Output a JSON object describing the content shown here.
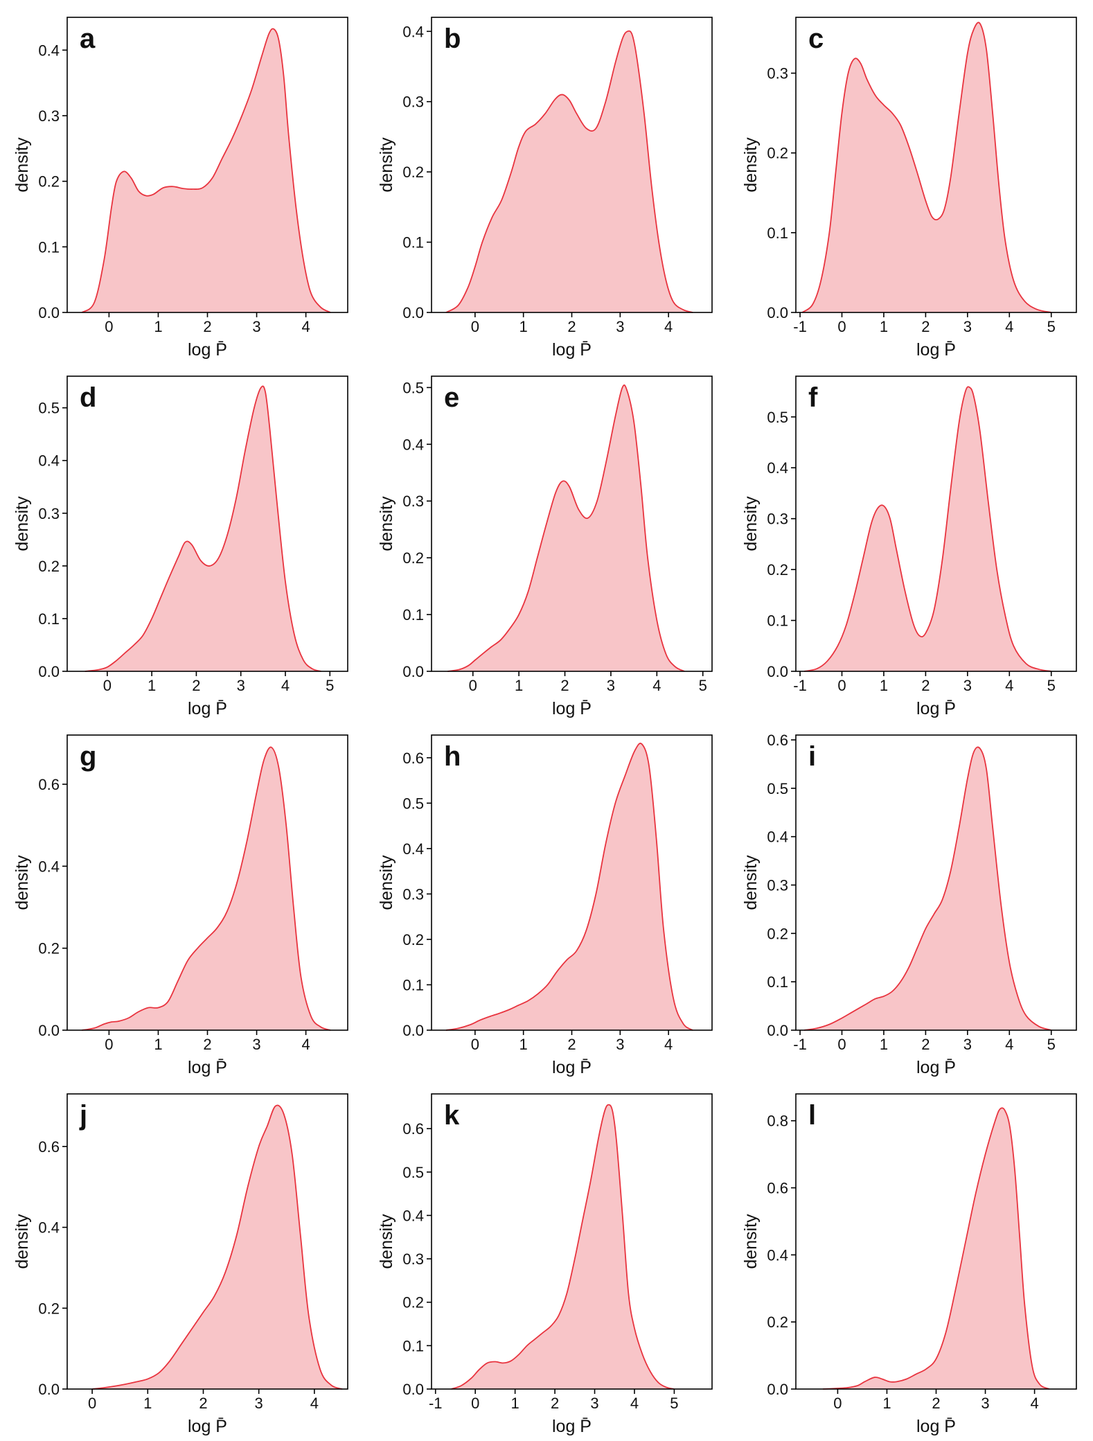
{
  "chart_data": [
    {
      "panel": "a",
      "type": "area",
      "xlabel": "log P̄",
      "ylabel": "density",
      "xlim": [
        -0.85,
        4.85
      ],
      "ylim": [
        0,
        0.45
      ],
      "xticks": [
        0,
        1,
        2,
        3,
        4
      ],
      "xtick_labels": [
        "0",
        "1",
        "2",
        "3",
        "4"
      ],
      "yticks": [
        0,
        0.1,
        0.2,
        0.3,
        0.4
      ],
      "ytick_labels": [
        "0.0",
        "0.1",
        "0.2",
        "0.3",
        "0.4"
      ],
      "x": [
        -0.55,
        -0.3,
        -0.1,
        0.05,
        0.15,
        0.3,
        0.45,
        0.6,
        0.75,
        0.9,
        1.1,
        1.3,
        1.5,
        1.7,
        1.9,
        2.1,
        2.3,
        2.5,
        2.7,
        2.9,
        3.1,
        3.25,
        3.35,
        3.45,
        3.55,
        3.65,
        3.8,
        3.95,
        4.1,
        4.3,
        4.5
      ],
      "y": [
        0.0,
        0.015,
        0.08,
        0.16,
        0.2,
        0.215,
        0.205,
        0.185,
        0.178,
        0.18,
        0.19,
        0.192,
        0.189,
        0.188,
        0.19,
        0.205,
        0.235,
        0.265,
        0.3,
        0.34,
        0.39,
        0.425,
        0.432,
        0.415,
        0.36,
        0.27,
        0.16,
        0.08,
        0.03,
        0.008,
        0.0
      ]
    },
    {
      "panel": "b",
      "type": "area",
      "xlabel": "log P̄",
      "ylabel": "density",
      "xlim": [
        -0.9,
        4.9
      ],
      "ylim": [
        0,
        0.42
      ],
      "xticks": [
        0,
        1,
        2,
        3,
        4
      ],
      "xtick_labels": [
        "0",
        "1",
        "2",
        "3",
        "4"
      ],
      "yticks": [
        0,
        0.1,
        0.2,
        0.3,
        0.4
      ],
      "ytick_labels": [
        "0.0",
        "0.1",
        "0.2",
        "0.3",
        "0.4"
      ],
      "x": [
        -0.6,
        -0.35,
        -0.15,
        0.0,
        0.15,
        0.35,
        0.55,
        0.75,
        0.9,
        1.05,
        1.25,
        1.45,
        1.65,
        1.8,
        1.95,
        2.1,
        2.3,
        2.5,
        2.7,
        2.9,
        3.05,
        3.15,
        3.25,
        3.35,
        3.5,
        3.65,
        3.8,
        3.95,
        4.1,
        4.3,
        4.5
      ],
      "y": [
        0.0,
        0.01,
        0.035,
        0.065,
        0.1,
        0.135,
        0.16,
        0.2,
        0.235,
        0.258,
        0.268,
        0.283,
        0.303,
        0.31,
        0.302,
        0.283,
        0.262,
        0.262,
        0.3,
        0.355,
        0.39,
        0.4,
        0.395,
        0.36,
        0.28,
        0.18,
        0.1,
        0.045,
        0.015,
        0.004,
        0.0
      ]
    },
    {
      "panel": "c",
      "type": "area",
      "xlabel": "log P̄",
      "ylabel": "density",
      "xlim": [
        -1.1,
        5.6
      ],
      "ylim": [
        0,
        0.37
      ],
      "xticks": [
        -1,
        0,
        1,
        2,
        3,
        4,
        5
      ],
      "xtick_labels": [
        "-1",
        "0",
        "1",
        "2",
        "3",
        "4",
        "5"
      ],
      "yticks": [
        0,
        0.1,
        0.2,
        0.3
      ],
      "ytick_labels": [
        "0.0",
        "0.1",
        "0.2",
        "0.3"
      ],
      "x": [
        -0.95,
        -0.7,
        -0.5,
        -0.3,
        -0.15,
        0.0,
        0.15,
        0.3,
        0.45,
        0.6,
        0.8,
        1.0,
        1.2,
        1.4,
        1.6,
        1.8,
        2.0,
        2.15,
        2.3,
        2.45,
        2.6,
        2.8,
        3.0,
        3.15,
        3.3,
        3.45,
        3.6,
        3.75,
        3.9,
        4.1,
        4.35,
        4.65,
        5.0
      ],
      "y": [
        0.0,
        0.01,
        0.04,
        0.1,
        0.175,
        0.25,
        0.3,
        0.318,
        0.312,
        0.292,
        0.272,
        0.26,
        0.25,
        0.235,
        0.208,
        0.175,
        0.14,
        0.12,
        0.117,
        0.13,
        0.17,
        0.25,
        0.325,
        0.355,
        0.362,
        0.33,
        0.25,
        0.16,
        0.09,
        0.04,
        0.015,
        0.004,
        0.0
      ]
    },
    {
      "panel": "d",
      "type": "area",
      "xlabel": "log P̄",
      "ylabel": "density",
      "xlim": [
        -0.9,
        5.4
      ],
      "ylim": [
        0,
        0.56
      ],
      "xticks": [
        0,
        1,
        2,
        3,
        4,
        5
      ],
      "xtick_labels": [
        "0",
        "1",
        "2",
        "3",
        "4",
        "5"
      ],
      "yticks": [
        0,
        0.1,
        0.2,
        0.3,
        0.4,
        0.5
      ],
      "ytick_labels": [
        "0.0",
        "0.1",
        "0.2",
        "0.3",
        "0.4",
        "0.5"
      ],
      "x": [
        -0.5,
        -0.2,
        0.0,
        0.2,
        0.4,
        0.6,
        0.8,
        1.0,
        1.2,
        1.4,
        1.6,
        1.75,
        1.9,
        2.1,
        2.3,
        2.5,
        2.7,
        2.9,
        3.1,
        3.3,
        3.45,
        3.55,
        3.65,
        3.8,
        4.0,
        4.2,
        4.4,
        4.6,
        4.8
      ],
      "y": [
        0.0,
        0.003,
        0.008,
        0.02,
        0.035,
        0.05,
        0.068,
        0.1,
        0.14,
        0.18,
        0.218,
        0.245,
        0.24,
        0.21,
        0.2,
        0.215,
        0.26,
        0.33,
        0.42,
        0.5,
        0.538,
        0.53,
        0.46,
        0.33,
        0.17,
        0.07,
        0.022,
        0.005,
        0.0
      ]
    },
    {
      "panel": "e",
      "type": "area",
      "xlabel": "log P̄",
      "ylabel": "density",
      "xlim": [
        -0.9,
        5.2
      ],
      "ylim": [
        0,
        0.52
      ],
      "xticks": [
        0,
        1,
        2,
        3,
        4,
        5
      ],
      "xtick_labels": [
        "0",
        "1",
        "2",
        "3",
        "4",
        "5"
      ],
      "yticks": [
        0,
        0.1,
        0.2,
        0.3,
        0.4,
        0.5
      ],
      "ytick_labels": [
        "0.0",
        "0.1",
        "0.2",
        "0.3",
        "0.4",
        "0.5"
      ],
      "x": [
        -0.55,
        -0.3,
        -0.1,
        0.05,
        0.2,
        0.4,
        0.6,
        0.8,
        1.0,
        1.2,
        1.4,
        1.6,
        1.8,
        1.95,
        2.1,
        2.3,
        2.5,
        2.7,
        2.9,
        3.1,
        3.25,
        3.35,
        3.5,
        3.65,
        3.8,
        4.0,
        4.2,
        4.4,
        4.6
      ],
      "y": [
        0.0,
        0.003,
        0.01,
        0.02,
        0.03,
        0.043,
        0.055,
        0.075,
        0.1,
        0.14,
        0.2,
        0.26,
        0.315,
        0.335,
        0.325,
        0.285,
        0.27,
        0.3,
        0.37,
        0.45,
        0.5,
        0.495,
        0.44,
        0.33,
        0.2,
        0.09,
        0.03,
        0.008,
        0.0
      ]
    },
    {
      "panel": "f",
      "type": "area",
      "xlabel": "log P̄",
      "ylabel": "density",
      "xlim": [
        -1.1,
        5.6
      ],
      "ylim": [
        0,
        0.58
      ],
      "xticks": [
        -1,
        0,
        1,
        2,
        3,
        4,
        5
      ],
      "xtick_labels": [
        "-1",
        "0",
        "1",
        "2",
        "3",
        "4",
        "5"
      ],
      "yticks": [
        0,
        0.1,
        0.2,
        0.3,
        0.4,
        0.5
      ],
      "ytick_labels": [
        "0.0",
        "0.1",
        "0.2",
        "0.3",
        "0.4",
        "0.5"
      ],
      "x": [
        -0.9,
        -0.6,
        -0.35,
        -0.1,
        0.1,
        0.3,
        0.5,
        0.7,
        0.85,
        1.0,
        1.15,
        1.3,
        1.5,
        1.7,
        1.85,
        2.0,
        2.2,
        2.4,
        2.6,
        2.8,
        2.95,
        3.05,
        3.15,
        3.3,
        3.5,
        3.7,
        3.9,
        4.1,
        4.4,
        4.7,
        5.0
      ],
      "y": [
        0.0,
        0.005,
        0.02,
        0.05,
        0.09,
        0.15,
        0.22,
        0.29,
        0.32,
        0.325,
        0.3,
        0.24,
        0.16,
        0.095,
        0.07,
        0.075,
        0.12,
        0.22,
        0.36,
        0.49,
        0.55,
        0.558,
        0.54,
        0.47,
        0.33,
        0.2,
        0.11,
        0.05,
        0.015,
        0.004,
        0.0
      ]
    },
    {
      "panel": "g",
      "type": "area",
      "xlabel": "log P̄",
      "ylabel": "density",
      "xlim": [
        -0.85,
        4.85
      ],
      "ylim": [
        0,
        0.72
      ],
      "xticks": [
        0,
        1,
        2,
        3,
        4
      ],
      "xtick_labels": [
        "0",
        "1",
        "2",
        "3",
        "4"
      ],
      "yticks": [
        0,
        0.2,
        0.4,
        0.6
      ],
      "ytick_labels": [
        "0.0",
        "0.2",
        "0.4",
        "0.6"
      ],
      "x": [
        -0.55,
        -0.3,
        -0.1,
        0.05,
        0.2,
        0.4,
        0.6,
        0.8,
        1.0,
        1.2,
        1.4,
        1.6,
        1.8,
        2.0,
        2.2,
        2.4,
        2.6,
        2.8,
        3.0,
        3.15,
        3.3,
        3.45,
        3.6,
        3.75,
        3.9,
        4.1,
        4.3,
        4.5
      ],
      "y": [
        0.0,
        0.005,
        0.015,
        0.02,
        0.022,
        0.03,
        0.045,
        0.055,
        0.055,
        0.07,
        0.12,
        0.17,
        0.2,
        0.225,
        0.25,
        0.29,
        0.36,
        0.46,
        0.58,
        0.66,
        0.69,
        0.64,
        0.5,
        0.3,
        0.13,
        0.035,
        0.008,
        0.0
      ]
    },
    {
      "panel": "h",
      "type": "area",
      "xlabel": "log P̄",
      "ylabel": "density",
      "xlim": [
        -0.9,
        4.9
      ],
      "ylim": [
        0,
        0.65
      ],
      "xticks": [
        0,
        1,
        2,
        3,
        4
      ],
      "xtick_labels": [
        "0",
        "1",
        "2",
        "3",
        "4"
      ],
      "yticks": [
        0,
        0.1,
        0.2,
        0.3,
        0.4,
        0.5,
        0.6
      ],
      "ytick_labels": [
        "0.0",
        "0.1",
        "0.2",
        "0.3",
        "0.4",
        "0.5",
        "0.6"
      ],
      "x": [
        -0.6,
        -0.35,
        -0.1,
        0.1,
        0.3,
        0.5,
        0.7,
        0.9,
        1.1,
        1.3,
        1.5,
        1.7,
        1.9,
        2.1,
        2.3,
        2.5,
        2.7,
        2.9,
        3.1,
        3.3,
        3.45,
        3.6,
        3.75,
        3.9,
        4.1,
        4.3,
        4.5
      ],
      "y": [
        0.0,
        0.004,
        0.012,
        0.022,
        0.03,
        0.037,
        0.045,
        0.055,
        0.065,
        0.08,
        0.1,
        0.13,
        0.155,
        0.175,
        0.22,
        0.3,
        0.41,
        0.5,
        0.56,
        0.615,
        0.63,
        0.58,
        0.42,
        0.22,
        0.07,
        0.015,
        0.0
      ]
    },
    {
      "panel": "i",
      "type": "area",
      "xlabel": "log P̄",
      "ylabel": "density",
      "xlim": [
        -1.1,
        5.6
      ],
      "ylim": [
        0,
        0.61
      ],
      "xticks": [
        -1,
        0,
        1,
        2,
        3,
        4,
        5
      ],
      "xtick_labels": [
        "-1",
        "0",
        "1",
        "2",
        "3",
        "4",
        "5"
      ],
      "yticks": [
        0,
        0.1,
        0.2,
        0.3,
        0.4,
        0.5,
        0.6
      ],
      "ytick_labels": [
        "0.0",
        "0.1",
        "0.2",
        "0.3",
        "0.4",
        "0.5",
        "0.6"
      ],
      "x": [
        -0.9,
        -0.6,
        -0.3,
        0.0,
        0.2,
        0.4,
        0.6,
        0.8,
        1.0,
        1.2,
        1.4,
        1.6,
        1.8,
        2.0,
        2.2,
        2.4,
        2.6,
        2.8,
        3.0,
        3.15,
        3.3,
        3.45,
        3.6,
        3.8,
        4.0,
        4.2,
        4.4,
        4.7,
        5.0
      ],
      "y": [
        0.0,
        0.004,
        0.012,
        0.025,
        0.035,
        0.045,
        0.055,
        0.065,
        0.07,
        0.08,
        0.1,
        0.13,
        0.17,
        0.21,
        0.24,
        0.27,
        0.33,
        0.42,
        0.52,
        0.575,
        0.582,
        0.54,
        0.42,
        0.26,
        0.14,
        0.07,
        0.03,
        0.008,
        0.0
      ]
    },
    {
      "panel": "j",
      "type": "area",
      "xlabel": "log P̄",
      "ylabel": "density",
      "xlim": [
        -0.45,
        4.6
      ],
      "ylim": [
        0,
        0.73
      ],
      "xticks": [
        0,
        1,
        2,
        3,
        4
      ],
      "xtick_labels": [
        "0",
        "1",
        "2",
        "3",
        "4"
      ],
      "yticks": [
        0,
        0.2,
        0.4,
        0.6
      ],
      "ytick_labels": [
        "0.0",
        "0.2",
        "0.4",
        "0.6"
      ],
      "x": [
        0.0,
        0.2,
        0.4,
        0.6,
        0.8,
        1.0,
        1.2,
        1.4,
        1.6,
        1.8,
        2.0,
        2.2,
        2.4,
        2.6,
        2.8,
        3.0,
        3.15,
        3.3,
        3.45,
        3.6,
        3.75,
        3.9,
        4.1,
        4.3,
        4.5
      ],
      "y": [
        0.0,
        0.003,
        0.007,
        0.012,
        0.018,
        0.025,
        0.04,
        0.07,
        0.11,
        0.15,
        0.19,
        0.23,
        0.29,
        0.38,
        0.5,
        0.6,
        0.65,
        0.7,
        0.68,
        0.58,
        0.38,
        0.18,
        0.05,
        0.01,
        0.0
      ]
    },
    {
      "panel": "k",
      "type": "area",
      "xlabel": "log P̄",
      "ylabel": "density",
      "xlim": [
        -1.1,
        5.95
      ],
      "ylim": [
        0,
        0.68
      ],
      "xticks": [
        -1,
        0,
        1,
        2,
        3,
        4,
        5
      ],
      "xtick_labels": [
        "-1",
        "0",
        "1",
        "2",
        "3",
        "4",
        "5"
      ],
      "yticks": [
        0,
        0.1,
        0.2,
        0.3,
        0.4,
        0.5,
        0.6
      ],
      "ytick_labels": [
        "0.0",
        "0.1",
        "0.2",
        "0.3",
        "0.4",
        "0.5",
        "0.6"
      ],
      "x": [
        -0.6,
        -0.35,
        -0.1,
        0.1,
        0.3,
        0.5,
        0.7,
        0.9,
        1.1,
        1.3,
        1.5,
        1.7,
        1.9,
        2.1,
        2.3,
        2.5,
        2.7,
        2.9,
        3.1,
        3.25,
        3.35,
        3.45,
        3.55,
        3.7,
        3.85,
        4.0,
        4.2,
        4.4,
        4.6,
        4.8,
        5.0
      ],
      "y": [
        0.0,
        0.008,
        0.025,
        0.045,
        0.06,
        0.063,
        0.06,
        0.065,
        0.08,
        0.1,
        0.115,
        0.13,
        0.145,
        0.17,
        0.22,
        0.3,
        0.39,
        0.48,
        0.58,
        0.64,
        0.655,
        0.64,
        0.57,
        0.4,
        0.22,
        0.14,
        0.08,
        0.04,
        0.015,
        0.004,
        0.0
      ]
    },
    {
      "panel": "l",
      "type": "area",
      "xlabel": "log P̄",
      "ylabel": "density",
      "xlim": [
        -0.85,
        4.85
      ],
      "ylim": [
        0,
        0.88
      ],
      "xticks": [
        0,
        1,
        2,
        3,
        4
      ],
      "xtick_labels": [
        "0",
        "1",
        "2",
        "3",
        "4"
      ],
      "yticks": [
        0,
        0.2,
        0.4,
        0.6,
        0.8
      ],
      "ytick_labels": [
        "0.0",
        "0.2",
        "0.4",
        "0.6",
        "0.8"
      ],
      "x": [
        -0.3,
        0.0,
        0.2,
        0.4,
        0.55,
        0.75,
        0.9,
        1.05,
        1.2,
        1.4,
        1.6,
        1.8,
        2.0,
        2.2,
        2.4,
        2.6,
        2.8,
        3.0,
        3.2,
        3.3,
        3.4,
        3.5,
        3.6,
        3.7,
        3.8,
        3.95,
        4.1,
        4.3
      ],
      "y": [
        0.0,
        0.002,
        0.004,
        0.01,
        0.022,
        0.035,
        0.03,
        0.022,
        0.022,
        0.03,
        0.045,
        0.06,
        0.09,
        0.17,
        0.3,
        0.44,
        0.58,
        0.7,
        0.8,
        0.835,
        0.83,
        0.78,
        0.65,
        0.45,
        0.25,
        0.07,
        0.015,
        0.0
      ]
    }
  ]
}
